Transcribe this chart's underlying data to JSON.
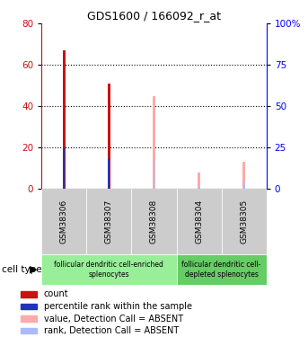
{
  "title": "GDS1600 / 166092_r_at",
  "samples": [
    "GSM38306",
    "GSM38307",
    "GSM38308",
    "GSM38304",
    "GSM38305"
  ],
  "count_present": [
    67,
    51,
    0,
    0,
    0
  ],
  "rank_present": [
    20,
    15,
    0,
    0,
    0
  ],
  "count_absent": [
    0,
    0,
    45,
    8,
    13
  ],
  "rank_absent": [
    0,
    0,
    13,
    1,
    3
  ],
  "ylim_left": [
    0,
    80
  ],
  "ylim_right": [
    0,
    100
  ],
  "yticks_left": [
    0,
    20,
    40,
    60,
    80
  ],
  "yticks_right": [
    0,
    25,
    50,
    75,
    100
  ],
  "color_count_present": "#cc1111",
  "color_rank_present": "#2233bb",
  "color_count_absent": "#ffaaaa",
  "color_rank_absent": "#aabbff",
  "color_sample_bg": "#cccccc",
  "color_group1_bg": "#99ee99",
  "color_group2_bg": "#66cc66",
  "group1_indices": [
    0,
    1,
    2
  ],
  "group2_indices": [
    3,
    4
  ],
  "group1_label": "follicular dendritic cell-enriched\nsplenocytes",
  "group2_label": "follicular dendritic cell-\ndepleted splenocytes",
  "legend_labels": [
    "count",
    "percentile rank within the sample",
    "value, Detection Call = ABSENT",
    "rank, Detection Call = ABSENT"
  ],
  "legend_colors": [
    "#cc1111",
    "#2233bb",
    "#ffaaaa",
    "#aabbff"
  ],
  "thin_bar_width": 0.07,
  "rank_square_size": 5.0
}
